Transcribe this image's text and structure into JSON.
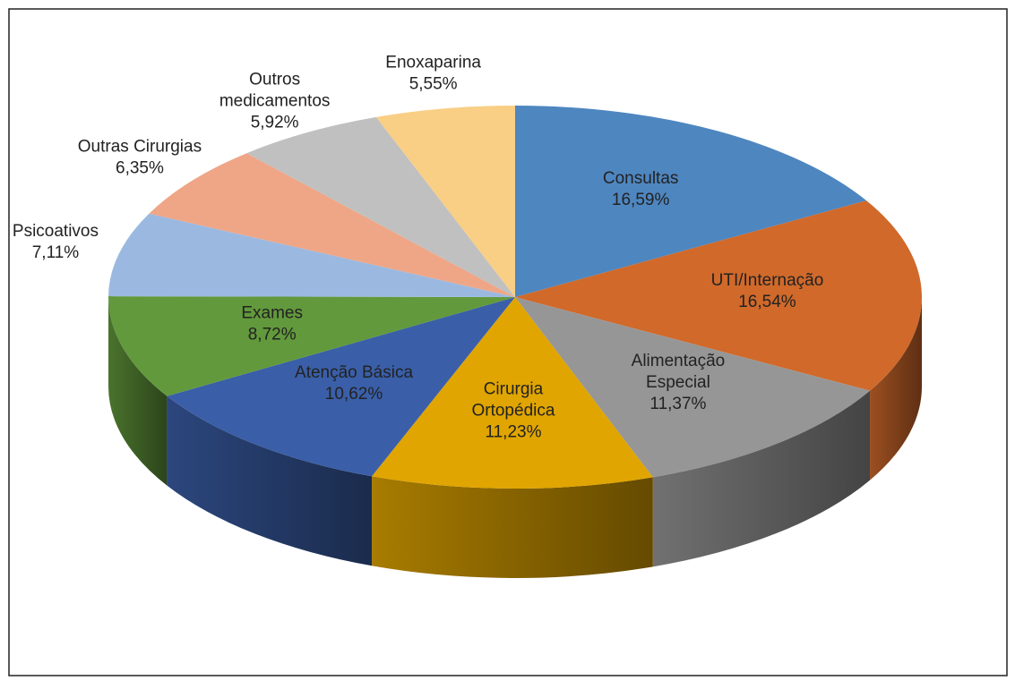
{
  "chart_data": {
    "type": "pie3d",
    "categories": [
      "Consultas",
      "UTI/Internação",
      "Alimentação Especial",
      "Cirurgia Ortopédica",
      "Atenção Básica",
      "Exames",
      "Psicoativos",
      "Outras Cirurgias",
      "Outros medicamentos",
      "Enoxaparina"
    ],
    "values": [
      16.59,
      16.54,
      11.37,
      11.23,
      10.62,
      8.72,
      7.11,
      6.35,
      5.92,
      5.55
    ],
    "value_labels": [
      "16,59%",
      "16,54%",
      "11,37%",
      "11,23%",
      "10,62%",
      "8,72%",
      "7,11%",
      "6,35%",
      "5,92%",
      "5,55%"
    ],
    "colors": [
      "#4e86c0",
      "#d0692a",
      "#969696",
      "#e0a500",
      "#3a5fa8",
      "#62993c",
      "#9bb9e0",
      "#eea687",
      "#c0c0c0",
      "#f9cf85"
    ]
  }
}
